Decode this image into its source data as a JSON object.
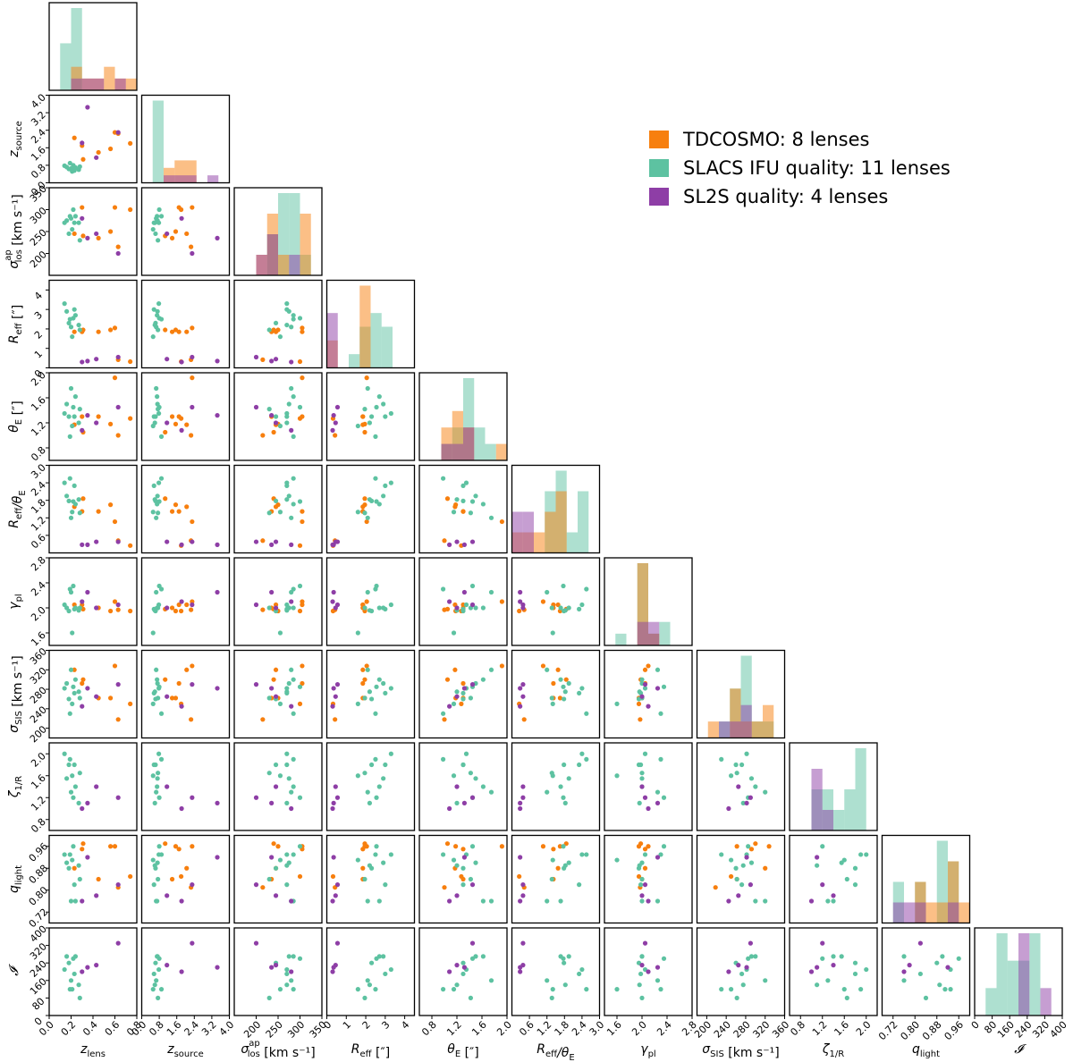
{
  "legend": [
    {
      "label": "TDCOSMO: 8 lenses",
      "color": "#f77f0e"
    },
    {
      "label": "SLACS IFU quality: 11 lenses",
      "color": "#5dc2a1"
    },
    {
      "label": "SL2S quality: 4 lenses",
      "color": "#8e3ea6"
    }
  ],
  "chart_data": {
    "type": "scatter",
    "subtype": "corner-plot",
    "grid": false,
    "legend_position": "upper-right",
    "histogram_alpha": 0.5,
    "variables": [
      {
        "key": "zl",
        "label": "z",
        "sub": "lens",
        "range": [
          0,
          0.8
        ],
        "ticks": [
          "0.0",
          "0.2",
          "0.4",
          "0.6",
          "0.8"
        ]
      },
      {
        "key": "zs",
        "label": "z",
        "sub": "source",
        "range": [
          0,
          4
        ],
        "ticks": [
          "0.0",
          "0.8",
          "1.6",
          "2.4",
          "3.2",
          "4.0"
        ]
      },
      {
        "key": "sig",
        "label": "σ",
        "sup": "ap",
        "sub": "los",
        "unit": "[km s⁻¹]",
        "range": [
          150,
          350
        ],
        "ticks": [
          "200",
          "250",
          "300",
          "350"
        ]
      },
      {
        "key": "reff",
        "label": "R",
        "sub": "eff",
        "unit": "[″]",
        "range": [
          0,
          4.5
        ],
        "ticks": [
          "0",
          "1",
          "2",
          "3",
          "4"
        ]
      },
      {
        "key": "te",
        "label": "θ",
        "sub": "E",
        "unit": "[″]",
        "range": [
          0.6,
          2.0
        ],
        "ticks": [
          "0.8",
          "1.2",
          "1.6",
          "2.0"
        ]
      },
      {
        "key": "ratio",
        "label": "R",
        "sub": "eff",
        "label2": "/θ",
        "sub2": "E",
        "range": [
          0,
          3.0
        ],
        "ticks": [
          "0.6",
          "1.2",
          "1.8",
          "2.4",
          "3.0"
        ]
      },
      {
        "key": "gpl",
        "label": "γ",
        "sub": "pl",
        "range": [
          1.4,
          2.8
        ],
        "ticks": [
          "1.6",
          "2.0",
          "2.4",
          "2.8"
        ]
      },
      {
        "key": "ssis",
        "label": "σ",
        "sub": "SIS",
        "unit": "[km s⁻¹]",
        "range": [
          180,
          360
        ],
        "ticks": [
          "200",
          "240",
          "280",
          "320",
          "360"
        ]
      },
      {
        "key": "zeta",
        "label": "ζ",
        "sub": "1/R",
        "range": [
          0.6,
          2.2
        ],
        "ticks": [
          "0.8",
          "1.2",
          "1.6",
          "2.0"
        ]
      },
      {
        "key": "q",
        "label": "q",
        "sub": "light",
        "range": [
          0.68,
          1.0
        ],
        "ticks": [
          "0.72",
          "0.80",
          "0.88",
          "0.96"
        ]
      },
      {
        "key": "I",
        "label": "𝓘",
        "range": [
          0,
          400
        ],
        "ticks": [
          "0",
          "80",
          "160",
          "240",
          "320",
          "400"
        ]
      }
    ],
    "series": [
      {
        "name": "TDCOSMO: 8 lenses",
        "color": "#f77f0e",
        "points": [
          {
            "zl": 0.3,
            "zs": 1.7,
            "sig": 305,
            "reff": 1.85,
            "te": 1.3,
            "ratio": 1.42,
            "gpl": 2.05,
            "ssis": 292,
            "q": 0.95
          },
          {
            "zl": 0.45,
            "zs": 1.39,
            "sig": 235,
            "reff": 1.85,
            "te": 1.3,
            "ratio": 1.42,
            "gpl": 2.0,
            "ssis": 262,
            "q": 0.84
          },
          {
            "zl": 0.56,
            "zs": 1.55,
            "sig": 250,
            "reff": 1.95,
            "te": 1.18,
            "ratio": 1.65,
            "gpl": 1.95,
            "ssis": 262,
            "q": 0.96
          },
          {
            "zl": 0.63,
            "zs": 2.25,
            "sig": 215,
            "reff": 0.42,
            "te": 1.0,
            "ratio": 0.42,
            "gpl": 1.97,
            "ssis": 218,
            "q": 0.81
          },
          {
            "zl": 0.74,
            "zs": 1.8,
            "sig": 300,
            "reff": 0.32,
            "te": 1.27,
            "ratio": 0.25,
            "gpl": 1.95,
            "ssis": 250,
            "q": 0.85
          },
          {
            "zl": 0.23,
            "zs": 2.05,
            "sig": 245,
            "reff": 1.85,
            "te": 1.17,
            "ratio": 1.58,
            "gpl": 2.05,
            "ssis": 320,
            "q": 0.88
          },
          {
            "zl": 0.31,
            "zs": 1.07,
            "sig": 240,
            "reff": 1.95,
            "te": 1.05,
            "ratio": 1.86,
            "gpl": 1.98,
            "ssis": 300,
            "q": 0.97
          },
          {
            "zl": 0.6,
            "zs": 2.3,
            "sig": 305,
            "reff": 2.05,
            "te": 1.92,
            "ratio": 1.07,
            "gpl": 2.1,
            "ssis": 328,
            "q": 0.96
          }
        ]
      },
      {
        "name": "SLACS IFU quality: 11 lenses",
        "color": "#5dc2a1",
        "points": [
          {
            "zl": 0.14,
            "zs": 0.78,
            "sig": 270,
            "reff": 3.3,
            "te": 1.35,
            "ratio": 2.4,
            "gpl": 2.05,
            "ssis": 282,
            "zeta": 2.0,
            "q": 0.93,
            "I": 210
          },
          {
            "zl": 0.16,
            "zs": 0.72,
            "sig": 275,
            "reff": 2.9,
            "te": 1.5,
            "ratio": 1.95,
            "gpl": 2.0,
            "ssis": 292,
            "zeta": 1.55,
            "q": 0.9,
            "I": 270
          },
          {
            "zl": 0.18,
            "zs": 0.63,
            "sig": 245,
            "reff": 2.3,
            "te": 1.3,
            "ratio": 1.78,
            "gpl": 1.95,
            "ssis": 260,
            "zeta": 1.8,
            "q": 0.88,
            "I": 240
          },
          {
            "zl": 0.2,
            "zs": 0.66,
            "sig": 280,
            "reff": 2.1,
            "te": 1.75,
            "ratio": 1.2,
            "gpl": 2.25,
            "ssis": 320,
            "zeta": 1.3,
            "q": 0.76,
            "I": 160
          },
          {
            "zl": 0.21,
            "zs": 0.52,
            "sig": 255,
            "reff": 1.6,
            "te": 1.15,
            "ratio": 1.4,
            "gpl": 1.6,
            "ssis": 250,
            "zeta": 1.6,
            "q": 0.91,
            "I": 120
          },
          {
            "zl": 0.22,
            "zs": 0.8,
            "sig": 300,
            "reff": 2.55,
            "te": 1.45,
            "ratio": 1.76,
            "gpl": 2.35,
            "ssis": 285,
            "zeta": 1.2,
            "q": 0.96,
            "I": 260
          },
          {
            "zl": 0.23,
            "zs": 0.56,
            "sig": 270,
            "reff": 3.0,
            "te": 1.3,
            "ratio": 2.3,
            "gpl": 1.98,
            "ssis": 272,
            "zeta": 1.8,
            "q": 0.82,
            "I": 190
          },
          {
            "zl": 0.24,
            "zs": 0.7,
            "sig": 285,
            "reff": 2.7,
            "te": 1.62,
            "ratio": 1.67,
            "gpl": 2.0,
            "ssis": 300,
            "zeta": 1.4,
            "q": 0.76,
            "I": 270
          },
          {
            "zl": 0.27,
            "zs": 0.6,
            "sig": 270,
            "reff": 2.2,
            "te": 1.2,
            "ratio": 1.83,
            "gpl": 1.96,
            "ssis": 275,
            "zeta": 1.1,
            "q": 0.89,
            "I": 140
          },
          {
            "zl": 0.28,
            "zs": 0.74,
            "sig": 230,
            "reff": 1.95,
            "te": 1.42,
            "ratio": 1.37,
            "gpl": 2.0,
            "ssis": 262,
            "zeta": 1.65,
            "q": 0.84,
            "I": 80
          },
          {
            "zl": 0.19,
            "zs": 0.9,
            "sig": 285,
            "reff": 2.5,
            "te": 0.98,
            "ratio": 2.55,
            "gpl": 2.3,
            "ssis": 230,
            "zeta": 1.9,
            "q": 0.93,
            "I": 120
          }
        ]
      },
      {
        "name": "SL2S quality: 4 lenses",
        "color": "#8e3ea6",
        "points": [
          {
            "zl": 0.35,
            "zs": 3.45,
            "sig": 235,
            "reff": 0.35,
            "te": 1.32,
            "ratio": 0.28,
            "gpl": 2.25,
            "ssis": 282,
            "zeta": 1.1,
            "q": 0.92,
            "I": 220
          },
          {
            "zl": 0.63,
            "zs": 2.3,
            "sig": 200,
            "reff": 0.55,
            "te": 1.45,
            "ratio": 0.38,
            "gpl": 2.05,
            "ssis": 290,
            "zeta": 1.2,
            "q": 0.82,
            "I": 330
          },
          {
            "zl": 0.43,
            "zs": 1.15,
            "sig": 245,
            "reff": 0.45,
            "te": 1.2,
            "ratio": 0.38,
            "gpl": 2.0,
            "ssis": 265,
            "zeta": 1.4,
            "q": 0.78,
            "I": 230
          },
          {
            "zl": 0.3,
            "zs": 1.82,
            "sig": 280,
            "reff": 0.3,
            "te": 1.08,
            "ratio": 0.28,
            "gpl": 2.1,
            "ssis": 245,
            "zeta": 1.0,
            "q": 0.76,
            "I": 200
          }
        ]
      }
    ]
  }
}
